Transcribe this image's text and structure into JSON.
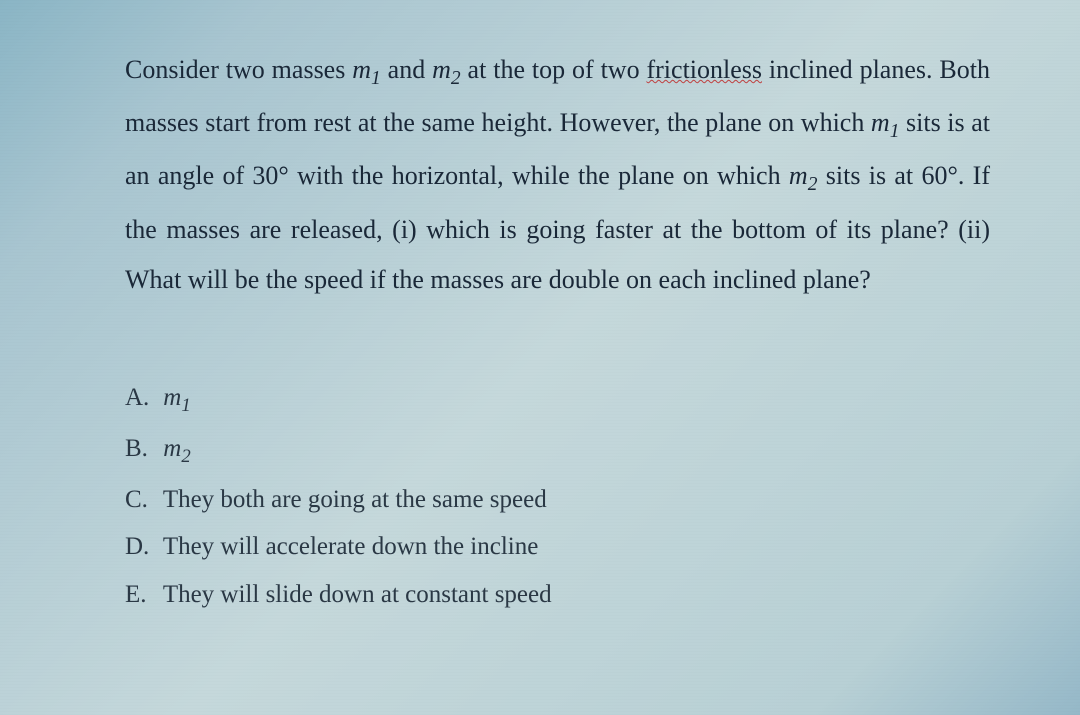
{
  "question": {
    "part1_pre": "Consider two masses ",
    "m1_sym": "m",
    "m1_sub": "1",
    "part1_mid": " and ",
    "m2_sym": "m",
    "m2_sub": "2",
    "part1_post": " at the top of two ",
    "underlined1": "frictionless",
    "part1_end": " inclined planes.",
    "part2": "Both masses start from rest at the same height.  However, the plane on which ",
    "m1b_sym": "m",
    "m1b_sub": "1",
    "part3": " sits is at an angle of 30° with the horizontal, while the plane on which ",
    "m2b_sym": "m",
    "m2b_sub": "2",
    "part4": " sits is at 60°.  If the masses are released, (i) which is going faster at the bottom of its plane? (ii) What will be the speed if the masses are double on each inclined plane?"
  },
  "answers": {
    "a": {
      "label": "A.",
      "m_sym": "m",
      "m_sub": "1"
    },
    "b": {
      "label": "B.",
      "m_sym": "m",
      "m_sub": "2"
    },
    "c": {
      "label": "C.",
      "text": "They both are going at the same speed"
    },
    "d": {
      "label": "D.",
      "text": "They will accelerate down the incline"
    },
    "e": {
      "label": "E.",
      "text": "They will slide down at constant speed"
    }
  },
  "styling": {
    "font_family": "Times New Roman",
    "question_fontsize": 26,
    "answer_fontsize": 25,
    "text_color": "#1a2838",
    "answer_color": "#2a3845",
    "underline_color": "#c04040",
    "background_gradient": [
      "#8ab5c5",
      "#a8c5d0",
      "#c5d8db",
      "#b8d0d5",
      "#95b8c8"
    ],
    "line_height_question": 1.95,
    "line_height_answer": 1.75
  }
}
